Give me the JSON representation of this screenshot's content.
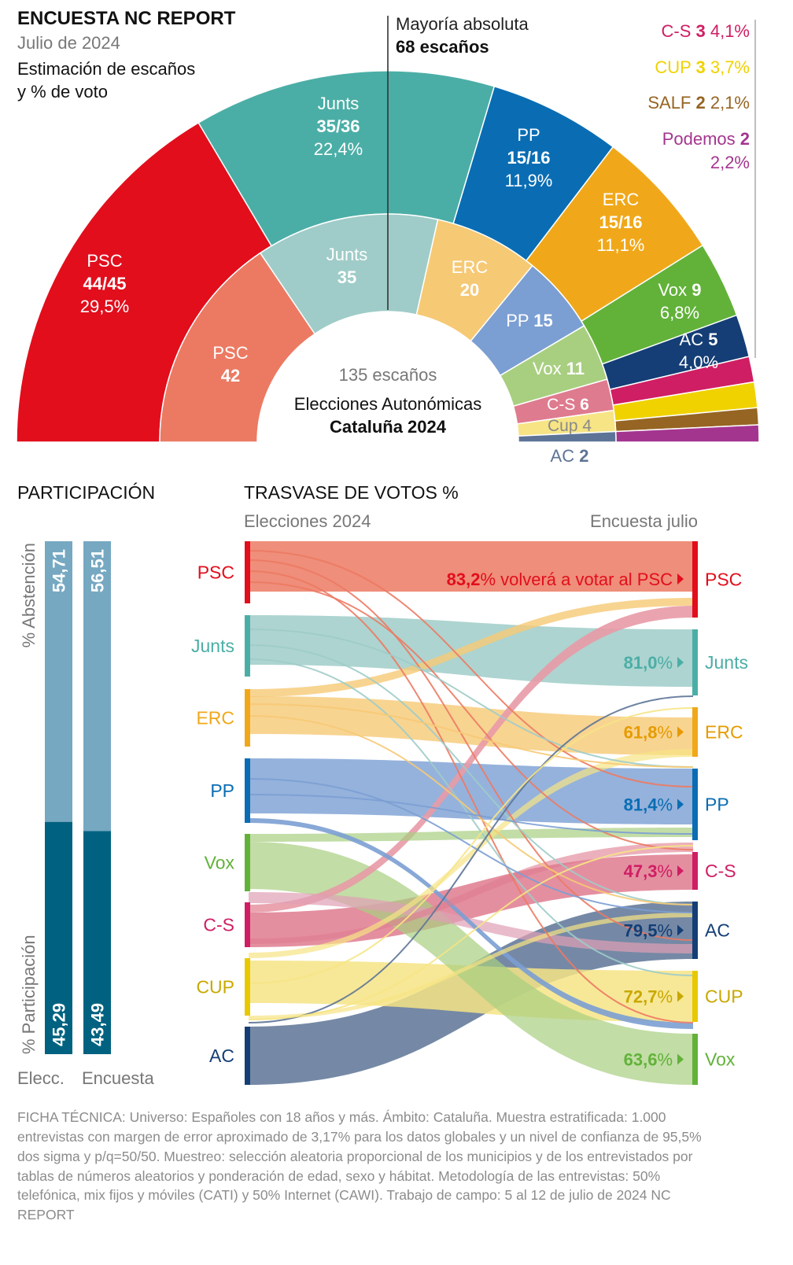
{
  "header": {
    "title": "ENCUESTA NC REPORT",
    "subtitle": "Julio de 2024",
    "desc_line1": "Estimación de escaños",
    "desc_line2": "y % de voto",
    "majority_line1": "Mayoría absoluta",
    "majority_line2": "68 escaños"
  },
  "center": {
    "seats_total": "135 escaños",
    "line1": "Elecciones Autonómicas",
    "line2": "Cataluña 2024"
  },
  "colors": {
    "PSC": "#e20e1c",
    "Junts": "#4baea6",
    "PP": "#0a6db3",
    "ERC": "#f0a81a",
    "Vox": "#62b23a",
    "AC": "#143e75",
    "CS": "#cf1e63",
    "CUP": "#f0d200",
    "SALF": "#966523",
    "Podemos": "#a4358f",
    "PSC_light": "#ec7a63",
    "Junts_light": "#9fccc8",
    "ERC_light": "#f6c975",
    "PP_light": "#7b9fd3",
    "Vox_light": "#a8cf80",
    "CS_light": "#df7b8f",
    "CUP_light": "#f6e485",
    "AC_light": "#5d7496",
    "abstention": "#76a8c2",
    "participation": "#006280"
  },
  "chart_data": [
    {
      "type": "pie",
      "title": "Estimación de escaños y % de voto",
      "series_name": "Encuesta julio 2024",
      "total_seats": 135,
      "slices": [
        {
          "party": "PSC",
          "seats": "44/45",
          "seats_mid": 44.5,
          "vote_pct": "29,5%"
        },
        {
          "party": "Junts",
          "seats": "35/36",
          "seats_mid": 35.5,
          "vote_pct": "22,4%"
        },
        {
          "party": "PP",
          "seats": "15/16",
          "seats_mid": 15.5,
          "vote_pct": "11,9%"
        },
        {
          "party": "ERC",
          "seats": "15/16",
          "seats_mid": 15.5,
          "vote_pct": "11,1%"
        },
        {
          "party": "Vox",
          "seats": "9",
          "seats_mid": 9,
          "vote_pct": "6,8%"
        },
        {
          "party": "AC",
          "seats": "5",
          "seats_mid": 5,
          "vote_pct": "4,0%"
        },
        {
          "party": "C-S",
          "seats": "3",
          "seats_mid": 3,
          "vote_pct": "4,1%"
        },
        {
          "party": "CUP",
          "seats": "3",
          "seats_mid": 3,
          "vote_pct": "3,7%"
        },
        {
          "party": "SALF",
          "seats": "2",
          "seats_mid": 2,
          "vote_pct": "2,1%"
        },
        {
          "party": "Podemos",
          "seats": "2",
          "seats_mid": 2,
          "vote_pct": "2,2%"
        }
      ],
      "majority_seats": 68
    },
    {
      "type": "pie",
      "title": "Elecciones Autonómicas Cataluña 2024",
      "total_seats": 135,
      "slices": [
        {
          "party": "PSC",
          "seats": 42
        },
        {
          "party": "Junts",
          "seats": 35
        },
        {
          "party": "ERC",
          "seats": 20
        },
        {
          "party": "PP",
          "seats": 15
        },
        {
          "party": "Vox",
          "seats": 11
        },
        {
          "party": "C-S",
          "seats": 6
        },
        {
          "party": "Cup",
          "seats": 4
        },
        {
          "party": "AC",
          "seats": 2
        }
      ]
    },
    {
      "type": "bar",
      "title": "PARTICIPACIÓN",
      "categories": [
        "Elecc.",
        "Encuesta"
      ],
      "series": [
        {
          "name": "% Abstención",
          "values": [
            54.71,
            56.51
          ],
          "labels": [
            "54,71",
            "56,51"
          ]
        },
        {
          "name": "% Participación",
          "values": [
            45.29,
            43.49
          ],
          "labels": [
            "45,29",
            "43,49"
          ]
        }
      ]
    },
    {
      "type": "table",
      "title": "TRASVASE DE VOTOS %",
      "left_label": "Elecciones 2024",
      "right_label": "Encuesta julio",
      "sources": [
        "PSC",
        "Junts",
        "ERC",
        "PP",
        "Vox",
        "C-S",
        "CUP",
        "AC"
      ],
      "targets": [
        "PSC",
        "Junts",
        "ERC",
        "PP",
        "C-S",
        "AC",
        "CUP",
        "Vox"
      ],
      "retention": [
        {
          "party": "PSC",
          "pct": "83,2%",
          "text": " volverá a votar al PSC"
        },
        {
          "party": "Junts",
          "pct": "81,0%"
        },
        {
          "party": "ERC",
          "pct": "61,8%"
        },
        {
          "party": "PP",
          "pct": "81,4%"
        },
        {
          "party": "C-S",
          "pct": "47,3%"
        },
        {
          "party": "AC",
          "pct": "79,5%"
        },
        {
          "party": "CUP",
          "pct": "72,7%"
        },
        {
          "party": "Vox",
          "pct": "63,6%"
        }
      ]
    }
  ],
  "participacion": {
    "title": "PARTICIPACIÓN",
    "label_abst": "% Abstención",
    "label_part": "% Participación",
    "x_labels": [
      "Elecc.",
      "Encuesta"
    ]
  },
  "trasvase": {
    "title": "TRASVASE DE VOTOS %",
    "left_label": "Elecciones 2024",
    "right_label": "Encuesta julio"
  },
  "ficha": "FICHA TÉCNICA: Universo: Españoles con 18 años y más. Ámbito: Cataluña. Muestra estratificada: 1.000 entrevistas con margen de error aproximado de 3,17% para los datos globales y un nivel de confianza de 95,5% dos sigma y p/q=50/50. Muestreo: selección aleatoria proporcional de los municipios y de los entrevistados por tablas de números aleatorios y ponderación de edad, sexo y hábitat. Metodología de las entrevistas: 50% telefónica, mix fijos y móviles (CATI) y 50% Internet (CAWI). Trabajo de campo: 5 al 12 de julio de 2024 NC REPORT"
}
